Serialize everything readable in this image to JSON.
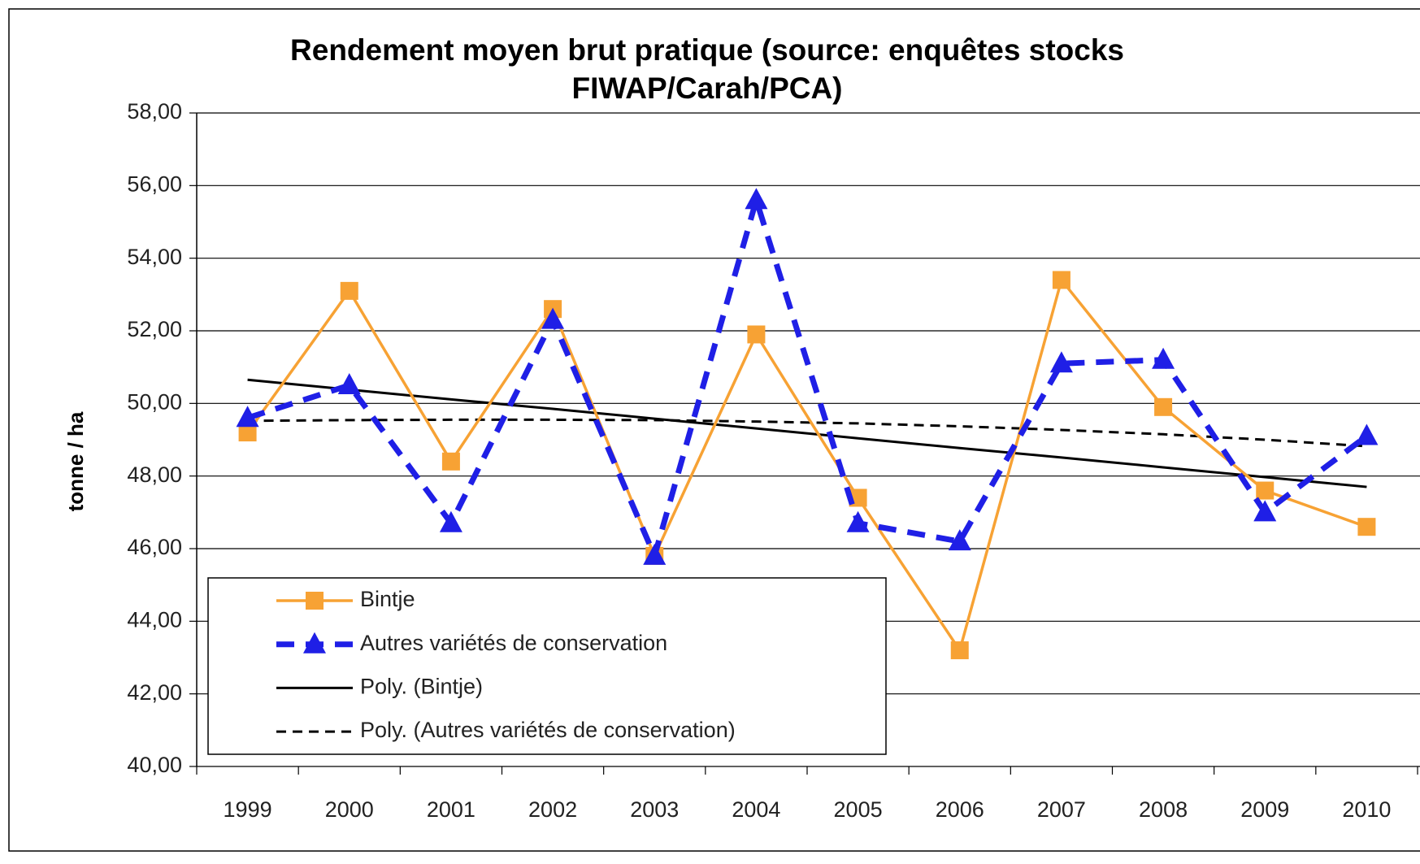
{
  "chart_data": {
    "type": "line",
    "title": [
      "Rendement moyen brut pratique (source: enquêtes stocks",
      "FIWAP/Carah/PCA)"
    ],
    "y_label": "tonne / ha",
    "categories": [
      "1999",
      "2000",
      "2001",
      "2002",
      "2003",
      "2004",
      "2005",
      "2006",
      "2007",
      "2008",
      "2009",
      "2010"
    ],
    "series": [
      {
        "name": "Bintje",
        "color": "#f7a234",
        "marker": "square",
        "dash": false,
        "values": [
          49.2,
          53.1,
          48.4,
          52.6,
          45.8,
          51.9,
          47.4,
          43.2,
          53.4,
          49.9,
          47.6,
          46.6
        ]
      },
      {
        "name": "Autres variétés de conservation",
        "color": "#1f1fe6",
        "marker": "triangle",
        "dash": true,
        "values": [
          49.6,
          50.5,
          46.7,
          52.3,
          45.8,
          55.6,
          46.7,
          46.2,
          51.1,
          51.2,
          47.0,
          49.1
        ]
      },
      {
        "name": "Poly. (Bintje)",
        "color": "#000000",
        "marker": "none",
        "dash": false,
        "values": [
          50.65,
          50.38,
          50.11,
          49.85,
          49.58,
          49.31,
          49.04,
          48.77,
          48.51,
          48.24,
          47.97,
          47.7
        ]
      },
      {
        "name": "Poly. (Autres variétés de conservation)",
        "color": "#000000",
        "marker": "none",
        "dash": true,
        "values": [
          49.52,
          49.54,
          49.55,
          49.55,
          49.54,
          49.5,
          49.45,
          49.37,
          49.27,
          49.15,
          49.0,
          48.82
        ]
      }
    ],
    "ylim": [
      40,
      58
    ],
    "yticks": [
      {
        "value": 40,
        "label": "40,00"
      },
      {
        "value": 42,
        "label": "42,00"
      },
      {
        "value": 44,
        "label": "44,00"
      },
      {
        "value": 46,
        "label": "46,00"
      },
      {
        "value": 48,
        "label": "48,00"
      },
      {
        "value": 50,
        "label": "50,00"
      },
      {
        "value": 52,
        "label": "52,00"
      },
      {
        "value": 54,
        "label": "54,00"
      },
      {
        "value": 56,
        "label": "56,00"
      },
      {
        "value": 58,
        "label": "58,00"
      }
    ],
    "grid": true,
    "legend": "lower left"
  }
}
